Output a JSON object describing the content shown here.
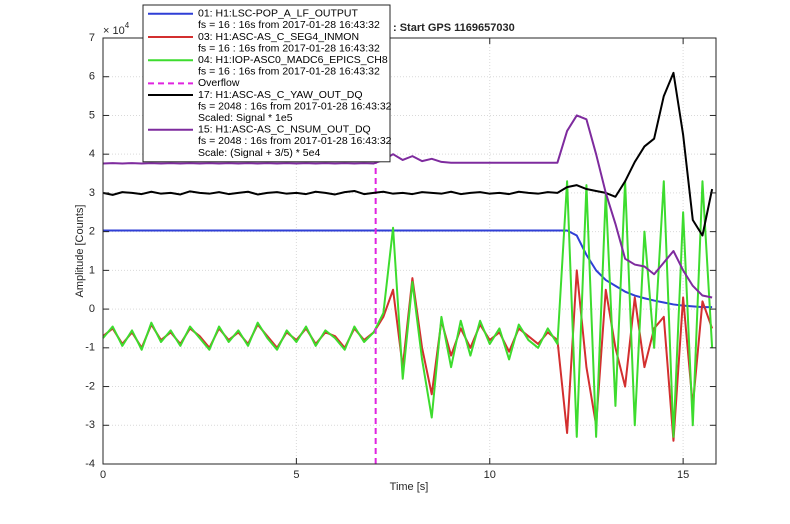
{
  "chart_data": {
    "type": "line",
    "title": ": Start GPS 1169657030",
    "x_label": "Time [s]",
    "y_label": "Amplitude [Counts]",
    "y_multiplier": "× 10",
    "y_exponent": "4",
    "xlim": [
      0,
      15.85
    ],
    "ylim": [
      -4,
      7
    ],
    "xticks": [
      0,
      5,
      10,
      15
    ],
    "yticks": [
      -4,
      -3,
      -2,
      -1,
      0,
      1,
      2,
      3,
      4,
      5,
      6,
      7
    ],
    "grid": true,
    "legend": "top-left",
    "x": [
      0,
      0.25,
      0.5,
      0.75,
      1,
      1.25,
      1.5,
      1.75,
      2,
      2.25,
      2.5,
      2.75,
      3,
      3.25,
      3.5,
      3.75,
      4,
      4.25,
      4.5,
      4.75,
      5,
      5.25,
      5.5,
      5.75,
      6,
      6.25,
      6.5,
      6.75,
      7,
      7.25,
      7.5,
      7.75,
      8,
      8.25,
      8.5,
      8.75,
      9,
      9.25,
      9.5,
      9.75,
      10,
      10.25,
      10.5,
      10.75,
      11,
      11.25,
      11.5,
      11.75,
      12,
      12.25,
      12.5,
      12.75,
      13,
      13.25,
      13.5,
      13.75,
      14,
      14.25,
      14.5,
      14.75,
      15,
      15.25,
      15.5,
      15.75
    ],
    "series": [
      {
        "name": [
          "01: H1:LSC-POP_A_LF_OUTPUT",
          "fs = 16 : 16s from 2017-01-28 16:43:32"
        ],
        "color": "#2f3fd6",
        "values": [
          2.03,
          2.03,
          2.03,
          2.03,
          2.03,
          2.03,
          2.03,
          2.03,
          2.03,
          2.03,
          2.03,
          2.03,
          2.03,
          2.03,
          2.03,
          2.03,
          2.03,
          2.03,
          2.03,
          2.03,
          2.03,
          2.03,
          2.03,
          2.03,
          2.03,
          2.03,
          2.03,
          2.03,
          2.03,
          2.03,
          2.03,
          2.03,
          2.03,
          2.03,
          2.03,
          2.03,
          2.03,
          2.03,
          2.03,
          2.03,
          2.03,
          2.03,
          2.03,
          2.03,
          2.03,
          2.03,
          2.03,
          2.03,
          2.03,
          1.9,
          1.4,
          1.0,
          0.75,
          0.6,
          0.45,
          0.35,
          0.28,
          0.22,
          0.17,
          0.12,
          0.09,
          0.07,
          0.05,
          0.05
        ]
      },
      {
        "name": [
          "03: H1:ASC-AS_C_SEG4_INMON",
          "fs = 16 : 16s from 2017-01-28 16:43:32"
        ],
        "color": "#d32f2f",
        "values": [
          -0.7,
          -0.5,
          -0.9,
          -0.6,
          -1.0,
          -0.4,
          -0.8,
          -0.6,
          -0.9,
          -0.5,
          -0.7,
          -1.0,
          -0.5,
          -0.8,
          -0.6,
          -0.9,
          -0.4,
          -0.7,
          -1.0,
          -0.6,
          -0.8,
          -0.5,
          -0.9,
          -0.6,
          -0.7,
          -1.0,
          -0.5,
          -0.8,
          -0.6,
          -0.2,
          0.5,
          -1.5,
          0.8,
          -1.0,
          -2.2,
          -0.3,
          -1.2,
          -0.5,
          -1.0,
          -0.4,
          -0.8,
          -0.6,
          -1.1,
          -0.5,
          -0.7,
          -0.9,
          -0.6,
          -0.8,
          -3.2,
          1.0,
          -1.5,
          -3.0,
          0.5,
          -1.0,
          -2.0,
          0.3,
          -1.5,
          -0.5,
          -0.2,
          -3.4,
          0.3,
          -2.5,
          0.2,
          -0.5
        ]
      },
      {
        "name": [
          "04: H1:IOP-ASC0_MADC6_EPICS_CH8",
          "fs = 16 : 16s from 2017-01-28 16:43:32"
        ],
        "color": "#3ddc2e",
        "values": [
          -0.75,
          -0.45,
          -0.95,
          -0.55,
          -1.05,
          -0.35,
          -0.85,
          -0.55,
          -0.95,
          -0.45,
          -0.75,
          -1.05,
          -0.45,
          -0.85,
          -0.55,
          -0.95,
          -0.35,
          -0.75,
          -1.05,
          -0.55,
          -0.85,
          -0.45,
          -0.95,
          -0.55,
          -0.75,
          -1.05,
          -0.45,
          -0.85,
          -0.6,
          -0.1,
          2.1,
          -1.8,
          0.7,
          -1.3,
          -2.8,
          -0.2,
          -1.5,
          -0.3,
          -1.2,
          -0.3,
          -0.9,
          -0.5,
          -1.3,
          -0.4,
          -0.8,
          -1.0,
          -0.5,
          -0.9,
          3.3,
          -3.3,
          3.2,
          -3.3,
          3.0,
          -2.5,
          3.3,
          -3.0,
          2.0,
          -1.0,
          3.3,
          -3.3,
          2.5,
          -3.0,
          3.3,
          -1.0
        ]
      },
      {
        "name": [
          "Overflow"
        ],
        "color": "#e024e0",
        "dashed": true,
        "x_position": 7.05
      },
      {
        "name": [
          "17: H1:ASC-AS_C_YAW_OUT_DQ",
          "fs = 2048 : 16s from 2017-01-28 16:43:32",
          "Scaled: Signal * 1e5"
        ],
        "color": "#000000",
        "values": [
          3.0,
          2.95,
          3.02,
          3.0,
          2.97,
          3.03,
          2.98,
          3.0,
          2.96,
          3.04,
          3.0,
          2.98,
          3.02,
          2.97,
          3.0,
          3.03,
          2.96,
          3.0,
          3.02,
          2.98,
          3.0,
          2.97,
          3.03,
          3.0,
          2.96,
          3.02,
          3.05,
          2.97,
          3.0,
          3.03,
          2.98,
          3.0,
          2.97,
          3.02,
          3.0,
          2.98,
          3.03,
          2.97,
          3.0,
          3.02,
          2.98,
          3.0,
          2.97,
          3.03,
          3.0,
          2.98,
          3.02,
          3.0,
          3.15,
          3.2,
          3.1,
          3.05,
          3.0,
          2.9,
          3.3,
          3.8,
          4.2,
          4.4,
          5.5,
          6.1,
          4.5,
          2.3,
          1.9,
          3.1
        ]
      },
      {
        "name": [
          "15: H1:ASC-AS_C_NSUM_OUT_DQ",
          "fs = 2048 : 16s from 2017-01-28 16:43:32",
          "Scale: (Signal + 3/5) * 5e4"
        ],
        "color": "#7e2b9e",
        "values": [
          3.76,
          3.77,
          3.76,
          3.77,
          3.76,
          3.77,
          3.76,
          3.77,
          3.76,
          3.77,
          3.76,
          3.77,
          3.76,
          3.77,
          3.76,
          3.77,
          3.76,
          3.77,
          3.76,
          3.77,
          3.76,
          3.77,
          3.76,
          3.77,
          3.76,
          3.77,
          3.76,
          3.77,
          3.76,
          3.85,
          4.0,
          3.85,
          3.95,
          3.82,
          3.88,
          3.8,
          3.78,
          3.78,
          3.78,
          3.78,
          3.78,
          3.78,
          3.78,
          3.78,
          3.78,
          3.78,
          3.78,
          3.78,
          4.6,
          5.0,
          4.9,
          4.0,
          3.0,
          2.2,
          1.3,
          1.15,
          1.1,
          0.9,
          1.2,
          1.5,
          1.0,
          0.6,
          0.35,
          0.3
        ]
      }
    ]
  }
}
